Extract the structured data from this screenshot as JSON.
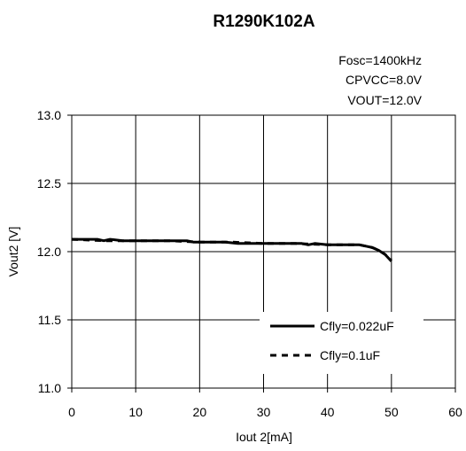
{
  "chart_data": {
    "type": "line",
    "title": "R1290K102A",
    "conditions": [
      "Fosc=1400kHz",
      "CPVCC=8.0V",
      "VOUT=12.0V"
    ],
    "xlabel": "Iout 2[mA]",
    "ylabel": "Vout2 [V]",
    "xlim": [
      0,
      60
    ],
    "ylim": [
      11.0,
      13.0
    ],
    "xticks": [
      "0",
      "10",
      "20",
      "30",
      "40",
      "50",
      "60"
    ],
    "yticks": [
      "11.0",
      "11.5",
      "12.0",
      "12.5",
      "13.0"
    ],
    "grid": true,
    "legend_position": "bottom-right",
    "series": [
      {
        "name": "Cfly=0.022uF",
        "style": "solid",
        "color": "#000000",
        "x": [
          0,
          2,
          4,
          5,
          6,
          8,
          10,
          12,
          14,
          16,
          18,
          19,
          20,
          22,
          24,
          26,
          28,
          30,
          32,
          34,
          36,
          37,
          38,
          40,
          42,
          44,
          45,
          46,
          47,
          48,
          49,
          50
        ],
        "y": [
          12.09,
          12.09,
          12.09,
          12.08,
          12.09,
          12.08,
          12.08,
          12.08,
          12.08,
          12.08,
          12.08,
          12.07,
          12.07,
          12.07,
          12.07,
          12.06,
          12.06,
          12.06,
          12.06,
          12.06,
          12.06,
          12.05,
          12.06,
          12.05,
          12.05,
          12.05,
          12.05,
          12.04,
          12.03,
          12.01,
          11.98,
          11.93
        ]
      },
      {
        "name": "Cfly=0.1uF",
        "style": "dashed",
        "color": "#000000",
        "x": [
          0,
          5,
          10,
          15,
          20,
          25,
          30,
          35,
          40,
          45,
          47,
          48,
          49,
          50
        ],
        "y": [
          12.09,
          12.08,
          12.08,
          12.08,
          12.07,
          12.07,
          12.06,
          12.06,
          12.05,
          12.05,
          12.03,
          12.01,
          11.98,
          11.94
        ]
      }
    ]
  }
}
